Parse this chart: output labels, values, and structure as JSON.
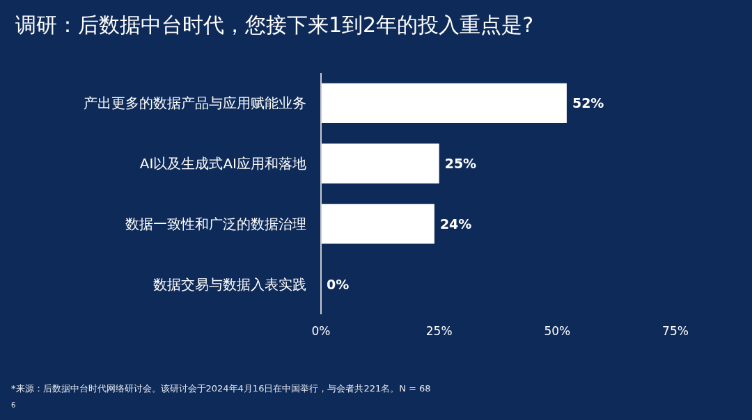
{
  "chart_data": {
    "type": "bar",
    "orientation": "horizontal",
    "title": "调研：后数据中台时代，您接下来1到2年的投入重点是?",
    "categories": [
      "产出更多的数据产品与应用赋能业务",
      "AI以及生成式AI应用和落地",
      "数据一致性和广泛的数据治理",
      "数据交易与数据入表实践"
    ],
    "values": [
      52,
      25,
      24,
      0
    ],
    "color": "#ffffff",
    "value_labels": [
      "52%",
      "25%",
      "24%",
      "0%"
    ],
    "xlim": [
      0,
      75
    ],
    "xticks": [
      {
        "value": 0,
        "label": "0%"
      },
      {
        "value": 25,
        "label": "25%"
      },
      {
        "value": 50,
        "label": "50%"
      },
      {
        "value": 75,
        "label": "75%"
      }
    ],
    "annotations": [
      "*来源：后数据中台时代网络研讨会。该研讨会于2024年4月16日在中国举行，与会者共221名。N = 68",
      "6"
    ]
  }
}
